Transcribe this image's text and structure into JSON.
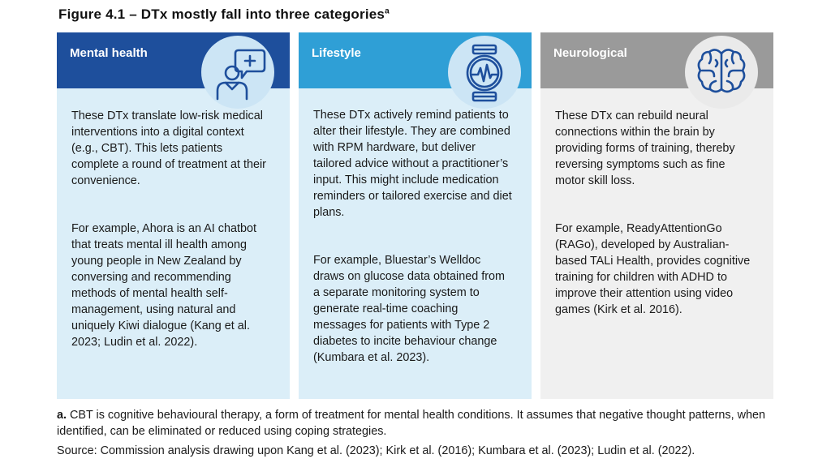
{
  "figure": {
    "title": "Figure 4.1 – DTx mostly fall into three categories",
    "title_sup": "a"
  },
  "panels": [
    {
      "label": "Mental health",
      "icon": "person-speech-bubble-icon",
      "header_color": "#1e4f9c",
      "para1": "These DTx translate low-risk medical interventions into a digital context (e.g., CBT). This lets patients complete a round of treatment at their convenience.",
      "para2": "For example, Ahora is an AI chatbot that treats mental ill health among young people in New Zealand by conversing and recommending methods of mental health self-management, using natural and uniquely Kiwi dialogue (Kang et al. 2023; Ludin et al. 2022)."
    },
    {
      "label": "Lifestyle",
      "icon": "smartwatch-heartbeat-icon",
      "header_color": "#2f9fd6",
      "para1": "These DTx actively remind patients to alter their lifestyle. They are combined with RPM hardware, but deliver tailored advice without a practitioner’s input. This might include medication reminders or tailored exercise and diet plans.",
      "para2": "For example, Bluestar’s Welldoc draws on glucose data obtained from a separate monitoring system to generate real-time coaching messages for patients with Type 2 diabetes to incite behaviour change (Kumbara et al. 2023)."
    },
    {
      "label": "Neurological",
      "icon": "brain-icon",
      "header_color": "#9a9a9a",
      "para1": "These DTx can rebuild neural connections within the brain by providing forms of training, thereby reversing symptoms such as fine motor skill loss.",
      "para2": "For example, ReadyAttentionGo (RAGo), developed by Australian-based TALi Health, provides cognitive training for children with ADHD to improve their attention using video games (Kirk et al. 2016)."
    }
  ],
  "footnote": {
    "label": "a.",
    "text": "CBT is cognitive behavioural therapy, a form of treatment for mental health conditions. It assumes that negative thought patterns, when identified, can be eliminated or reduced using coping strategies."
  },
  "source": "Source: Commission analysis drawing upon Kang et al. (2023); Kirk et al. (2016); Kumbara et al. (2023); Ludin et al. (2022)."
}
